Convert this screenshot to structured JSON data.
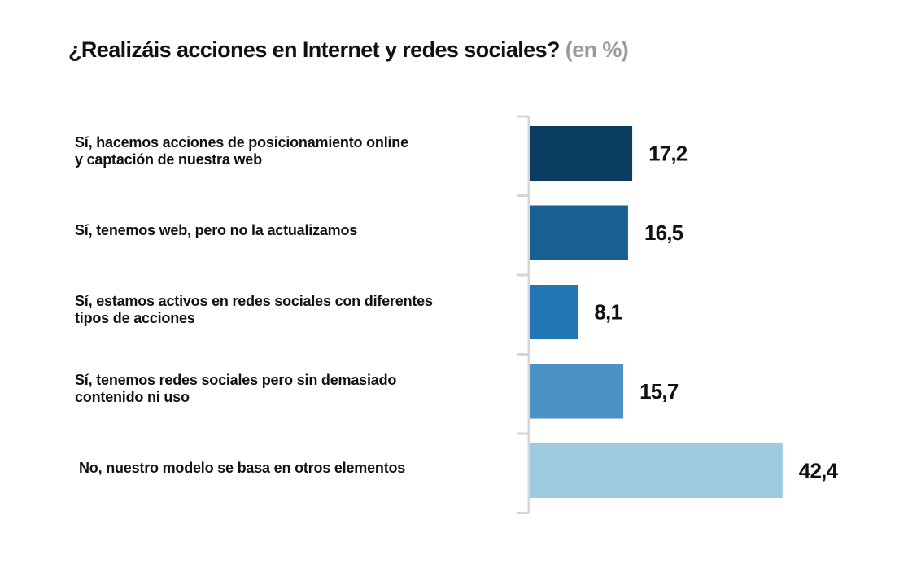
{
  "chart_data": {
    "type": "bar",
    "orientation": "horizontal",
    "title": "¿Realizáis acciones en Internet y redes sociales?",
    "title_unit": "(en %)",
    "xlabel": "",
    "ylabel": "",
    "xlim": [
      0,
      45
    ],
    "grid": false,
    "legend": "none",
    "categories": [
      "Sí, hacemos acciones de posicionamiento online\ny captación de nuestra web",
      "Sí, tenemos web, pero no la actualizamos",
      "Sí, estamos activos en redes sociales con diferentes\ntipos de acciones",
      "Sí, tenemos redes sociales pero sin demasiado\ncontenido ni uso",
      "No, nuestro modelo se basa en otros elementos"
    ],
    "values": [
      17.2,
      16.5,
      8.1,
      15.7,
      42.4
    ],
    "value_labels": [
      "17,2",
      "16,5",
      "8,1",
      "15,7",
      "42,4"
    ],
    "colors": [
      "#0b3d63",
      "#1a5f91",
      "#2077b4",
      "#4a92c4",
      "#9dc9e1"
    ],
    "axis_color": "#d6d6d6"
  }
}
